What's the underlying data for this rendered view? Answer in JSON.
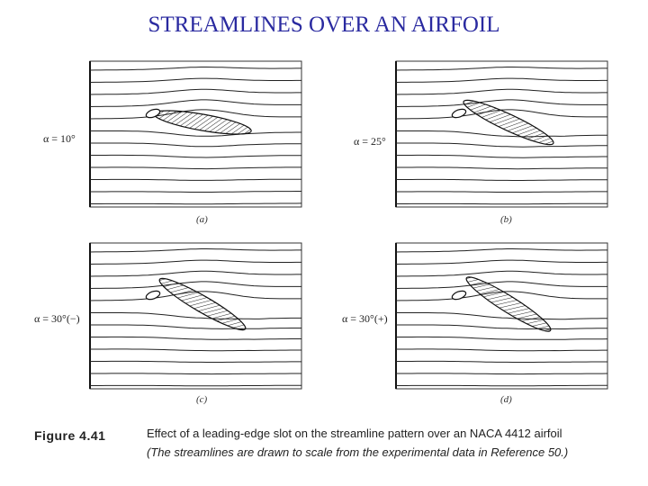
{
  "title": "STREAMLINES OVER AN AIRFOIL",
  "panels": [
    {
      "angle": "α = 10°",
      "label": "(a)"
    },
    {
      "angle": "α = 25°",
      "label": "(b)"
    },
    {
      "angle": "α = 30°(−)",
      "label": "(c)"
    },
    {
      "angle": "α = 30°(+)",
      "label": "(d)"
    }
  ],
  "caption": {
    "figure": "Figure 4.41",
    "lines": [
      "Effect of a leading-edge slot on the streamline pattern over an NACA 4412 airfoil",
      "(The streamlines are drawn to scale from the experimental data in Reference 50.)"
    ]
  }
}
